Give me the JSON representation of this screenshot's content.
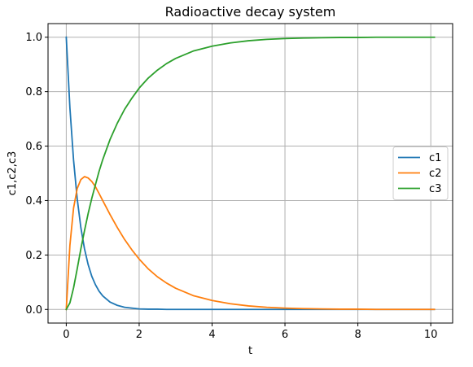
{
  "chart_data": {
    "type": "line",
    "title": "Radioactive decay system",
    "xlabel": "t",
    "ylabel": "c1,c2,c3",
    "xlim": [
      -0.5,
      10.6
    ],
    "ylim": [
      -0.05,
      1.05
    ],
    "xticks": [
      0,
      2,
      4,
      6,
      8,
      10
    ],
    "yticks": [
      0.0,
      0.2,
      0.4,
      0.6,
      0.8,
      1.0
    ],
    "xtick_labels": [
      "0",
      "2",
      "4",
      "6",
      "8",
      "10"
    ],
    "ytick_labels": [
      "0.0",
      "0.2",
      "0.4",
      "0.6",
      "0.8",
      "1.0"
    ],
    "grid": true,
    "legend_position": "center-right",
    "x": [
      0,
      0.1,
      0.2,
      0.3,
      0.4,
      0.5,
      0.6,
      0.7,
      0.8,
      0.9,
      1.0,
      1.2,
      1.4,
      1.6,
      1.8,
      2.0,
      2.25,
      2.5,
      2.75,
      3.0,
      3.5,
      4.0,
      4.5,
      5.0,
      5.5,
      6.0,
      6.5,
      7.0,
      7.5,
      8.0,
      8.5,
      9.0,
      9.5,
      10.1
    ],
    "series": [
      {
        "name": "c1",
        "color": "#1f77b4",
        "values": [
          1.0,
          0.741,
          0.549,
          0.407,
          0.301,
          0.223,
          0.165,
          0.122,
          0.091,
          0.067,
          0.05,
          0.027,
          0.015,
          0.008,
          0.005,
          0.002,
          0.001,
          0.001,
          0.0,
          0.0,
          0.0,
          0.0,
          0.0,
          0.0,
          0.0,
          0.0,
          0.0,
          0.0,
          0.0,
          0.0,
          0.0,
          0.0,
          0.0,
          0.0
        ]
      },
      {
        "name": "c2",
        "color": "#ff7f0e",
        "values": [
          0.0,
          0.235,
          0.372,
          0.444,
          0.477,
          0.488,
          0.483,
          0.47,
          0.451,
          0.426,
          0.4,
          0.349,
          0.301,
          0.257,
          0.219,
          0.185,
          0.149,
          0.12,
          0.097,
          0.078,
          0.05,
          0.033,
          0.021,
          0.013,
          0.008,
          0.005,
          0.003,
          0.002,
          0.001,
          0.001,
          0.0,
          0.0,
          0.0,
          0.0
        ]
      },
      {
        "name": "c3",
        "color": "#2ca02c",
        "values": [
          0.0,
          0.024,
          0.079,
          0.149,
          0.222,
          0.289,
          0.352,
          0.408,
          0.458,
          0.507,
          0.55,
          0.624,
          0.684,
          0.735,
          0.776,
          0.813,
          0.85,
          0.879,
          0.903,
          0.922,
          0.95,
          0.967,
          0.979,
          0.987,
          0.992,
          0.995,
          0.997,
          0.998,
          0.999,
          0.999,
          1.0,
          1.0,
          1.0,
          1.0
        ]
      }
    ]
  }
}
